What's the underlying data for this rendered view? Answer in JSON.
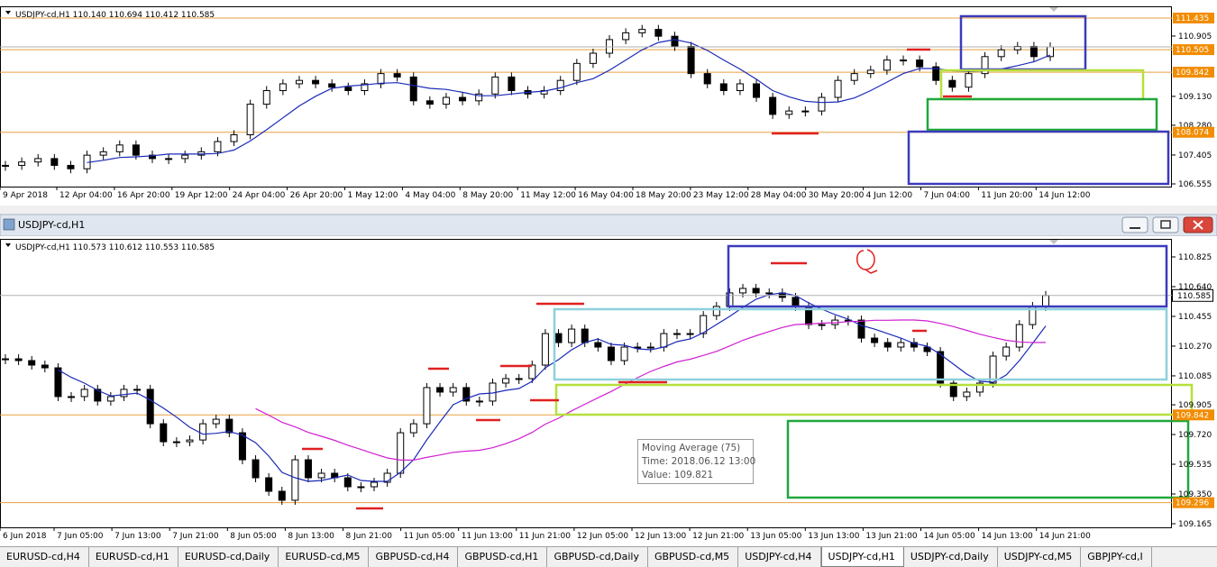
{
  "top_chart": {
    "header": "USDJPY-cd,H1  110.140 110.694 110.412 110.585",
    "price_labels": [
      {
        "text": "111.435",
        "level": true
      },
      {
        "text": "110.905",
        "level": false
      },
      {
        "text": "110.505",
        "level": true
      },
      {
        "text": "109.842",
        "level": true
      },
      {
        "text": "109.130",
        "level": false
      },
      {
        "text": "108.280",
        "level": false
      },
      {
        "text": "108.074",
        "level": true
      },
      {
        "text": "107.405",
        "level": false
      },
      {
        "text": "106.555",
        "level": false
      }
    ],
    "time_labels": [
      "9 Apr 2018",
      "12 Apr 04:00",
      "16 Apr 20:00",
      "19 Apr 12:00",
      "24 Apr 04:00",
      "26 Apr 20:00",
      "1 May 12:00",
      "4 May 04:00",
      "8 May 20:00",
      "11 May 12:00",
      "16 May 04:00",
      "18 May 20:00",
      "23 May 12:00",
      "28 May 04:00",
      "30 May 20:00",
      "4 Jun 12:00",
      "7 Jun 04:00",
      "11 Jun 20:00",
      "14 Jun 12:00"
    ],
    "closes": [
      107.1,
      107.2,
      107.3,
      107.1,
      107.0,
      107.4,
      107.5,
      107.7,
      107.4,
      107.3,
      107.3,
      107.4,
      107.5,
      107.8,
      108.0,
      108.9,
      109.3,
      109.5,
      109.6,
      109.5,
      109.4,
      109.3,
      109.5,
      109.8,
      109.7,
      109.0,
      108.9,
      109.1,
      109.0,
      109.2,
      109.7,
      109.3,
      109.2,
      109.3,
      109.6,
      110.1,
      110.4,
      110.8,
      111.0,
      111.1,
      110.9,
      110.6,
      109.8,
      109.5,
      109.3,
      109.5,
      109.1,
      108.6,
      108.7,
      108.7,
      109.1,
      109.6,
      109.8,
      109.9,
      110.2,
      110.2,
      110.0,
      109.6,
      109.4,
      109.8,
      110.3,
      110.5,
      110.6,
      110.3,
      110.585
    ]
  },
  "window": {
    "title": "USDJPY-cd,H1"
  },
  "bottom_chart": {
    "header": "USDJPY-cd,H1  110.573 110.612 110.553 110.585",
    "price_labels": [
      {
        "text": "110.825",
        "level": false
      },
      {
        "text": "110.640",
        "level": false
      },
      {
        "text": "110.455",
        "level": false
      },
      {
        "text": "110.270",
        "level": false
      },
      {
        "text": "110.085",
        "level": false
      },
      {
        "text": "109.905",
        "level": false
      },
      {
        "text": "109.842",
        "level": true
      },
      {
        "text": "109.720",
        "level": false
      },
      {
        "text": "109.535",
        "level": false
      },
      {
        "text": "109.350",
        "level": false
      },
      {
        "text": "109.296",
        "level": true
      },
      {
        "text": "109.165",
        "level": false
      }
    ],
    "current_price": "110.585",
    "time_labels": [
      "6 Jun 2018",
      "7 Jun 05:00",
      "7 Jun 13:00",
      "7 Jun 21:00",
      "8 Jun 05:00",
      "8 Jun 13:00",
      "8 Jun 21:00",
      "11 Jun 05:00",
      "11 Jun 13:00",
      "11 Jun 21:00",
      "12 Jun 05:00",
      "12 Jun 13:00",
      "12 Jun 21:00",
      "13 Jun 05:00",
      "13 Jun 13:00",
      "13 Jun 21:00",
      "14 Jun 05:00",
      "14 Jun 13:00",
      "14 Jun 21:00"
    ],
    "closes": [
      110.191,
      110.18,
      110.152,
      110.135,
      109.956,
      109.956,
      110.001,
      109.928,
      109.956,
      110.001,
      110.001,
      109.787,
      109.675,
      109.675,
      109.686,
      109.787,
      109.815,
      109.731,
      109.563,
      109.451,
      109.367,
      109.311,
      109.563,
      109.451,
      109.479,
      109.451,
      109.395,
      109.395,
      109.423,
      109.479,
      109.731,
      109.787,
      110.012,
      109.984,
      110.012,
      109.928,
      109.928,
      110.04,
      110.068,
      110.068,
      110.152,
      110.348,
      110.292,
      110.376,
      110.292,
      110.264,
      110.18,
      110.264,
      110.264,
      110.264,
      110.348,
      110.348,
      110.348,
      110.46,
      110.517,
      110.601,
      110.629,
      110.601,
      110.601,
      110.573,
      110.517,
      110.404,
      110.404,
      110.432,
      110.432,
      110.32,
      110.292,
      110.264,
      110.292,
      110.264,
      110.236,
      110.04,
      109.956,
      109.984,
      110.04,
      110.208,
      110.264,
      110.404,
      110.517,
      110.585
    ]
  },
  "tooltip": {
    "lines": [
      "Moving Average (75)",
      "Time: 2018.06.12 13:00",
      "Value: 109.821"
    ]
  },
  "tabs": {
    "items": [
      "EURUSD-cd,H4",
      "EURUSD-cd,H1",
      "EURUSD-cd,Daily",
      "EURUSD-cd,M5",
      "GBPUSD-cd,H4",
      "GBPUSD-cd,H1",
      "GBPUSD-cd,Daily",
      "GBPUSD-cd,M5",
      "USDJPY-cd,H4",
      "USDJPY-cd,H1",
      "USDJPY-cd,Daily",
      "USDJPY-cd,M5",
      "GBPJPY-cd,I"
    ],
    "active": 9
  }
}
